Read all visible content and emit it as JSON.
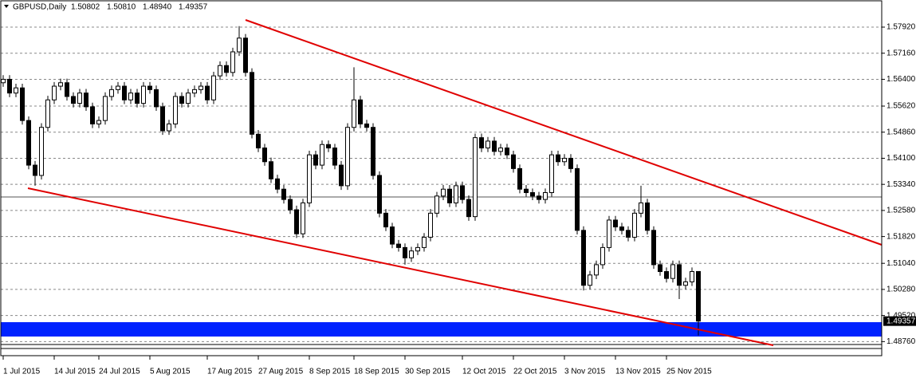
{
  "chart_data": {
    "type": "candlestick",
    "title": "GBPUSD,Daily",
    "last_bar_labels": [
      "1.50802",
      "1.50810",
      "1.48940",
      "1.49357"
    ],
    "categories": [
      "1 Jul 2015",
      null,
      null,
      null,
      null,
      null,
      null,
      null,
      "14 Jul 2015",
      null,
      null,
      null,
      null,
      null,
      null,
      "24 Jul 2015",
      null,
      null,
      null,
      null,
      null,
      null,
      null,
      "5 Aug 2015",
      null,
      null,
      null,
      null,
      null,
      null,
      null,
      null,
      "17 Aug 2015",
      null,
      null,
      null,
      null,
      null,
      null,
      null,
      "27 Aug 2015",
      null,
      null,
      null,
      null,
      null,
      null,
      null,
      "8 Sep 2015",
      null,
      null,
      null,
      null,
      null,
      null,
      "18 Sep 2015",
      null,
      null,
      null,
      null,
      null,
      null,
      null,
      "30 Sep 2015",
      null,
      null,
      null,
      null,
      null,
      null,
      null,
      null,
      "12 Oct 2015",
      null,
      null,
      null,
      null,
      null,
      null,
      null,
      "22 Oct 2015",
      null,
      null,
      null,
      null,
      null,
      null,
      null,
      "3 Nov 2015",
      null,
      null,
      null,
      null,
      null,
      null,
      null,
      "13 Nov 2015",
      null,
      null,
      null,
      null,
      null,
      null,
      null,
      "25 Nov 2015",
      null,
      null,
      null,
      null,
      null
    ],
    "open": [
      1.563,
      1.564,
      1.56,
      1.5615,
      1.552,
      1.539,
      1.536,
      1.55,
      1.558,
      1.562,
      1.563,
      1.559,
      1.557,
      1.56,
      1.556,
      1.551,
      1.552,
      1.559,
      1.561,
      1.562,
      1.558,
      1.56,
      1.557,
      1.562,
      1.561,
      1.556,
      1.549,
      1.551,
      1.559,
      1.557,
      1.56,
      1.561,
      1.562,
      1.558,
      1.565,
      1.568,
      1.566,
      1.572,
      1.576,
      1.566,
      1.548,
      1.544,
      1.54,
      1.535,
      1.532,
      1.529,
      1.526,
      1.519,
      1.528,
      1.542,
      1.539,
      1.545,
      1.544,
      1.539,
      1.533,
      1.55,
      1.558,
      1.551,
      1.55,
      1.536,
      1.525,
      1.521,
      1.516,
      1.515,
      1.512,
      1.514,
      1.515,
      1.518,
      1.525,
      1.53,
      1.532,
      1.528,
      1.533,
      1.529,
      1.524,
      1.547,
      1.544,
      1.546,
      1.543,
      1.544,
      1.542,
      1.538,
      1.532,
      1.531,
      1.53,
      1.529,
      1.531,
      1.542,
      1.54,
      1.541,
      1.538,
      1.52,
      1.504,
      1.507,
      1.51,
      1.515,
      1.523,
      1.521,
      1.52,
      1.518,
      1.525,
      1.528,
      1.52,
      1.51,
      1.508,
      1.506,
      1.51,
      1.504,
      1.505,
      1.50802
    ],
    "high": [
      1.5652,
      1.5652,
      1.5627,
      1.5627,
      1.5532,
      1.5402,
      1.5512,
      1.5592,
      1.5632,
      1.5642,
      1.5642,
      1.5602,
      1.5612,
      1.5612,
      1.5572,
      1.5532,
      1.5602,
      1.5622,
      1.5632,
      1.5632,
      1.5612,
      1.5612,
      1.5632,
      1.5632,
      1.5622,
      1.5572,
      1.5522,
      1.5602,
      1.5602,
      1.5612,
      1.5622,
      1.5632,
      1.5632,
      1.5662,
      1.5692,
      1.5692,
      1.5732,
      1.5795,
      1.5772,
      1.5672,
      1.5492,
      1.5452,
      1.5412,
      1.5362,
      1.5332,
      1.5302,
      1.5272,
      1.5292,
      1.5432,
      1.5432,
      1.5462,
      1.5462,
      1.5452,
      1.5402,
      1.5512,
      1.5675,
      1.5592,
      1.5522,
      1.5512,
      1.5372,
      1.5262,
      1.5222,
      1.5172,
      1.5162,
      1.5152,
      1.5162,
      1.5192,
      1.5262,
      1.5312,
      1.5332,
      1.5332,
      1.5342,
      1.5342,
      1.5302,
      1.5482,
      1.5482,
      1.5472,
      1.5472,
      1.5452,
      1.5452,
      1.5432,
      1.5392,
      1.5332,
      1.5322,
      1.5312,
      1.5322,
      1.5432,
      1.5432,
      1.5422,
      1.5422,
      1.5392,
      1.5212,
      1.5082,
      1.5112,
      1.5162,
      1.5242,
      1.5242,
      1.5222,
      1.5212,
      1.5262,
      1.533,
      1.5292,
      1.5212,
      1.5112,
      1.5092,
      1.5112,
      1.5112,
      1.5062,
      1.5092,
      1.5081
    ],
    "low": [
      1.5618,
      1.5588,
      1.5588,
      1.5508,
      1.5378,
      1.533,
      1.5348,
      1.5488,
      1.5568,
      1.5608,
      1.5578,
      1.5558,
      1.5558,
      1.5548,
      1.5498,
      1.5498,
      1.5508,
      1.5578,
      1.5598,
      1.5568,
      1.5568,
      1.5558,
      1.5558,
      1.5598,
      1.5548,
      1.5478,
      1.5478,
      1.5498,
      1.5558,
      1.5558,
      1.5588,
      1.5598,
      1.5568,
      1.5568,
      1.5638,
      1.5648,
      1.5648,
      1.5708,
      1.5648,
      1.5468,
      1.5428,
      1.5388,
      1.5338,
      1.5308,
      1.5278,
      1.5248,
      1.5178,
      1.5178,
      1.5268,
      1.5378,
      1.5378,
      1.5428,
      1.5378,
      1.5318,
      1.5318,
      1.5488,
      1.5498,
      1.5488,
      1.5348,
      1.5238,
      1.5198,
      1.5148,
      1.5138,
      1.51,
      1.5108,
      1.5128,
      1.5138,
      1.5168,
      1.5238,
      1.5288,
      1.5268,
      1.5268,
      1.5278,
      1.5228,
      1.5228,
      1.5428,
      1.5428,
      1.5418,
      1.5418,
      1.5408,
      1.5368,
      1.5308,
      1.5298,
      1.5288,
      1.5278,
      1.5278,
      1.5298,
      1.5388,
      1.5388,
      1.5368,
      1.5188,
      1.5025,
      1.5028,
      1.5058,
      1.5088,
      1.5138,
      1.5198,
      1.5188,
      1.5168,
      1.5168,
      1.5238,
      1.5188,
      1.5088,
      1.5068,
      1.5048,
      1.5048,
      1.5,
      1.5028,
      1.5038,
      1.4894
    ],
    "close": [
      1.564,
      1.56,
      1.5615,
      1.552,
      1.539,
      1.536,
      1.55,
      1.558,
      1.562,
      1.563,
      1.559,
      1.557,
      1.56,
      1.556,
      1.551,
      1.552,
      1.559,
      1.561,
      1.562,
      1.558,
      1.56,
      1.557,
      1.562,
      1.561,
      1.556,
      1.549,
      1.551,
      1.559,
      1.557,
      1.56,
      1.561,
      1.562,
      1.558,
      1.565,
      1.568,
      1.566,
      1.572,
      1.576,
      1.566,
      1.548,
      1.544,
      1.54,
      1.535,
      1.532,
      1.529,
      1.526,
      1.519,
      1.528,
      1.542,
      1.539,
      1.545,
      1.544,
      1.539,
      1.533,
      1.55,
      1.558,
      1.551,
      1.55,
      1.536,
      1.525,
      1.521,
      1.516,
      1.515,
      1.512,
      1.514,
      1.515,
      1.518,
      1.525,
      1.53,
      1.532,
      1.528,
      1.533,
      1.529,
      1.524,
      1.547,
      1.544,
      1.546,
      1.543,
      1.544,
      1.542,
      1.538,
      1.532,
      1.531,
      1.53,
      1.529,
      1.531,
      1.542,
      1.54,
      1.541,
      1.538,
      1.52,
      1.504,
      1.507,
      1.51,
      1.515,
      1.523,
      1.521,
      1.52,
      1.518,
      1.525,
      1.528,
      1.52,
      1.51,
      1.508,
      1.506,
      1.51,
      1.504,
      1.505,
      1.508,
      1.49357
    ],
    "ylim": [
      1.4835,
      1.5871
    ],
    "yticks": [
      {
        "value": 1.5792,
        "label": "1.57920"
      },
      {
        "value": 1.5716,
        "label": "1.57160"
      },
      {
        "value": 1.564,
        "label": "1.56400"
      },
      {
        "value": 1.5562,
        "label": "1.55620"
      },
      {
        "value": 1.5486,
        "label": "1.54860"
      },
      {
        "value": 1.541,
        "label": "1.54100"
      },
      {
        "value": 1.5334,
        "label": "1.53340"
      },
      {
        "value": 1.5258,
        "label": "1.52580"
      },
      {
        "value": 1.5182,
        "label": "1.51820"
      },
      {
        "value": 1.5104,
        "label": "1.51040"
      },
      {
        "value": 1.5028,
        "label": "1.50280"
      },
      {
        "value": 1.4952,
        "label": "1.49520"
      },
      {
        "value": 1.4876,
        "label": "1.48760"
      }
    ],
    "grid": true,
    "up_color": "#ffffff",
    "down_color": "#000000"
  }
}
